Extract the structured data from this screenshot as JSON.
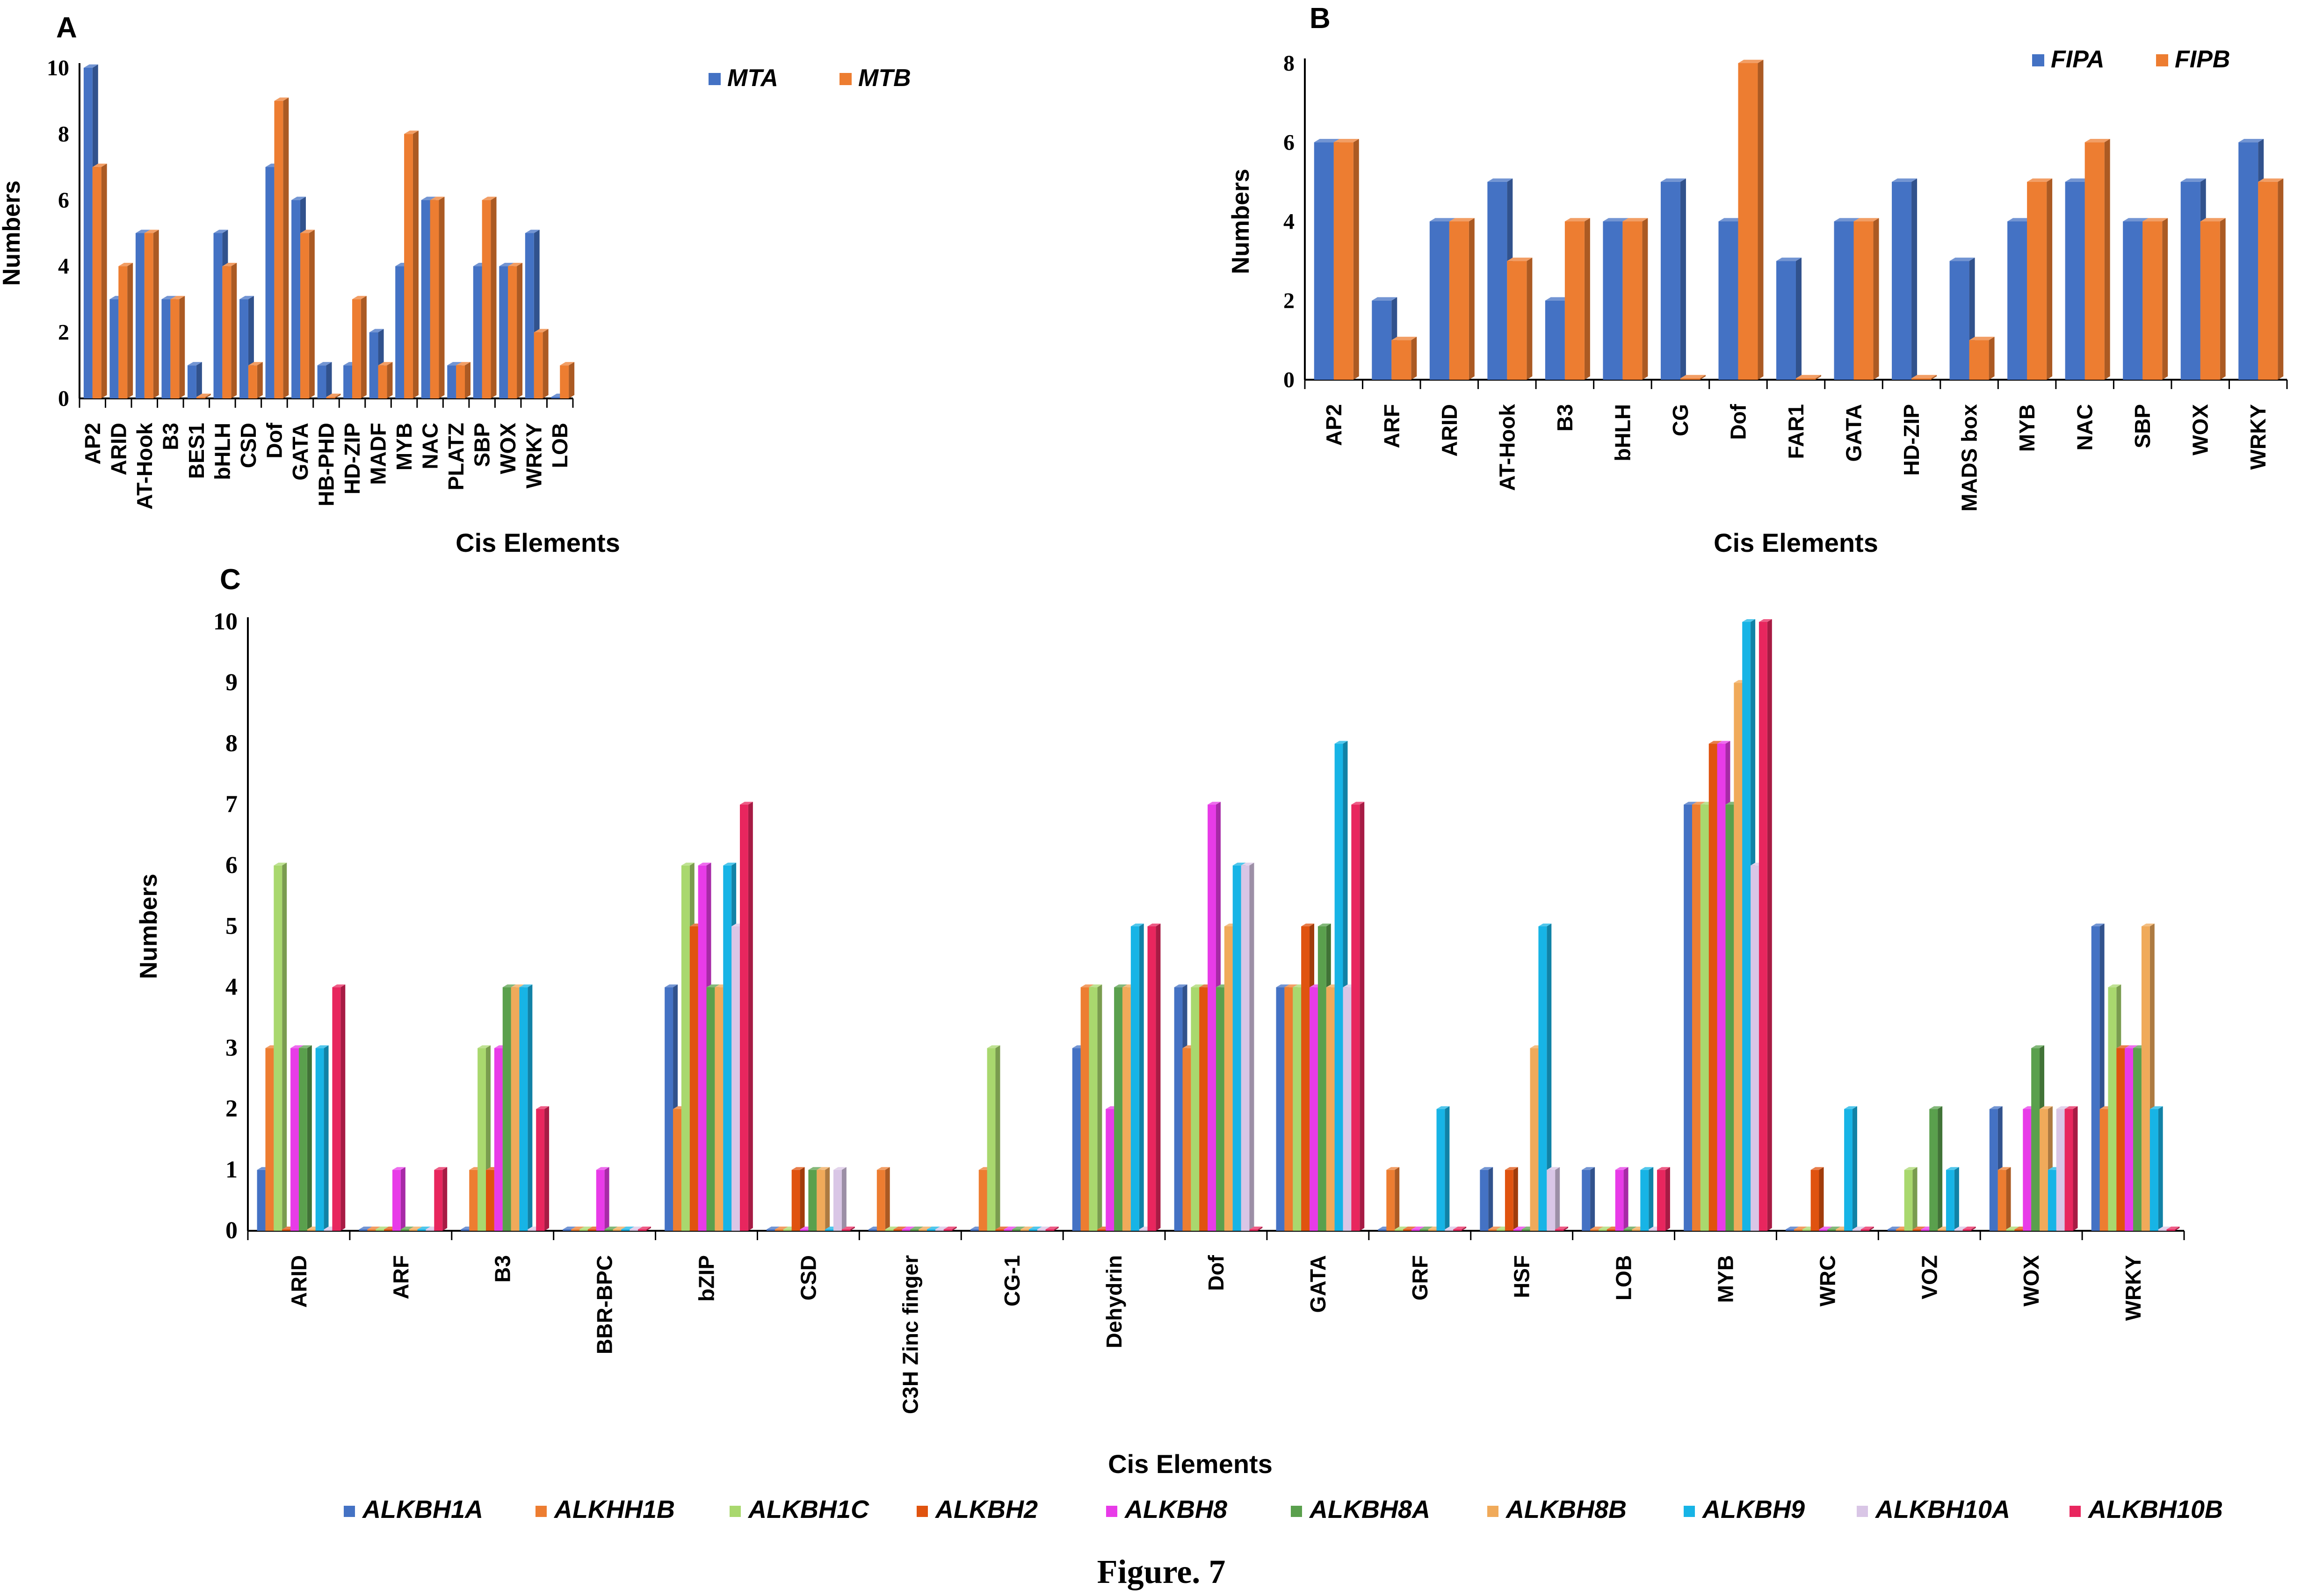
{
  "figure_caption": "Figure. 7",
  "colors": {
    "blue": "#4472C4",
    "orange": "#ED7D31",
    "lime": "#A9D86E",
    "darkorange": "#E0530F",
    "magenta": "#E83BE8",
    "green": "#5AA04D",
    "lightorange": "#F0AA5A",
    "cyan": "#17B4E6",
    "lavender": "#D9C6E6",
    "crimson": "#E8265E"
  },
  "chart_data": [
    {
      "panel": "A",
      "type": "bar",
      "xlabel": "Cis Elements",
      "ylabel": "Numbers",
      "ylim": [
        0,
        10
      ],
      "yticks": [
        "0",
        "2",
        "4",
        "6",
        "8",
        "10"
      ],
      "legend_position": "top-right",
      "categories": [
        "AP2",
        "ARID",
        "AT-Hook",
        "B3",
        "BES1",
        "bHLH",
        "CSD",
        "Dof",
        "GATA",
        "HB-PHD",
        "HD-ZIP",
        "MADF",
        "MYB",
        "NAC",
        "PLATZ",
        "SBP",
        "WOX",
        "WRKY",
        "LOB"
      ],
      "series": [
        {
          "name": "MTA",
          "color": "#4472C4",
          "values": [
            10,
            3,
            5,
            3,
            1,
            5,
            3,
            7,
            6,
            1,
            1,
            2,
            4,
            6,
            1,
            4,
            4,
            5,
            0
          ]
        },
        {
          "name": "MTB",
          "color": "#ED7D31",
          "values": [
            7,
            4,
            5,
            3,
            0,
            4,
            1,
            9,
            5,
            0,
            3,
            1,
            8,
            6,
            1,
            6,
            4,
            2,
            1
          ]
        }
      ]
    },
    {
      "panel": "B",
      "type": "bar",
      "xlabel": "Cis Elements",
      "ylabel": "Numbers",
      "ylim": [
        0,
        8
      ],
      "yticks": [
        "0",
        "2",
        "4",
        "6",
        "8"
      ],
      "legend_position": "top-right",
      "categories": [
        "AP2",
        "ARF",
        "ARID",
        "AT-Hook",
        "B3",
        "bHLH",
        "CG",
        "Dof",
        "FAR1",
        "GATA",
        "HD-ZIP",
        "MADS box",
        "MYB",
        "NAC",
        "SBP",
        "WOX",
        "WRKY"
      ],
      "series": [
        {
          "name": "FIPA",
          "color": "#4472C4",
          "values": [
            6,
            2,
            4,
            5,
            2,
            4,
            5,
            4,
            3,
            4,
            5,
            3,
            4,
            5,
            4,
            5,
            6
          ]
        },
        {
          "name": "FIPB",
          "color": "#ED7D31",
          "values": [
            6,
            1,
            4,
            3,
            4,
            4,
            0,
            8,
            0,
            4,
            0,
            1,
            5,
            6,
            4,
            4,
            5
          ]
        }
      ]
    },
    {
      "panel": "C",
      "type": "bar",
      "xlabel": "Cis Elements",
      "ylabel": "Numbers",
      "ylim": [
        0,
        10
      ],
      "yticks": [
        "0",
        "1",
        "2",
        "3",
        "4",
        "5",
        "6",
        "7",
        "8",
        "9",
        "10"
      ],
      "legend_position": "bottom",
      "categories": [
        "ARID",
        "ARF",
        "B3",
        "BBR-BPC",
        "bZIP",
        "CSD",
        "C3H Zinc finger",
        "CG-1",
        "Dehydrin",
        "Dof",
        "GATA",
        "GRF",
        "HSF",
        "LOB",
        "MYB",
        "WRC",
        "VOZ",
        "WOX",
        "WRKY"
      ],
      "series": [
        {
          "name": "ALKBH1A",
          "color": "#4472C4",
          "values": [
            1,
            0,
            0,
            0,
            4,
            0,
            0,
            0,
            3,
            4,
            4,
            0,
            1,
            1,
            7,
            0,
            0,
            2,
            5
          ]
        },
        {
          "name": "ALKHH1B",
          "color": "#ED7D31",
          "values": [
            3,
            0,
            1,
            0,
            2,
            0,
            1,
            1,
            4,
            3,
            4,
            1,
            0,
            0,
            7,
            0,
            0,
            1,
            2
          ]
        },
        {
          "name": "ALKBH1C",
          "color": "#A9D86E",
          "values": [
            6,
            0,
            3,
            0,
            6,
            0,
            0,
            3,
            4,
            4,
            4,
            0,
            0,
            0,
            7,
            0,
            1,
            0,
            4
          ]
        },
        {
          "name": "ALKBH2",
          "color": "#E0530F",
          "values": [
            0,
            0,
            1,
            0,
            5,
            1,
            0,
            0,
            0,
            4,
            5,
            0,
            1,
            0,
            8,
            1,
            0,
            0,
            3
          ]
        },
        {
          "name": "ALKBH8",
          "color": "#E83BE8",
          "values": [
            3,
            1,
            3,
            1,
            6,
            0,
            0,
            0,
            2,
            7,
            4,
            0,
            0,
            1,
            8,
            0,
            0,
            2,
            3
          ]
        },
        {
          "name": "ALKBH8A",
          "color": "#5AA04D",
          "values": [
            3,
            0,
            4,
            0,
            4,
            1,
            0,
            0,
            4,
            4,
            5,
            0,
            0,
            0,
            7,
            0,
            2,
            3,
            3
          ]
        },
        {
          "name": "ALKBH8B",
          "color": "#F0AA5A",
          "values": [
            0,
            0,
            4,
            0,
            4,
            1,
            0,
            0,
            4,
            5,
            4,
            0,
            3,
            0,
            9,
            0,
            0,
            2,
            5
          ]
        },
        {
          "name": "ALKBH9",
          "color": "#17B4E6",
          "values": [
            3,
            0,
            4,
            0,
            6,
            0,
            0,
            0,
            5,
            6,
            8,
            2,
            5,
            1,
            10,
            2,
            1,
            1,
            2
          ]
        },
        {
          "name": "ALKBH10A",
          "color": "#D9C6E6",
          "values": [
            0,
            0,
            0,
            0,
            5,
            1,
            0,
            0,
            0,
            6,
            4,
            0,
            1,
            0,
            6,
            0,
            0,
            2,
            0
          ]
        },
        {
          "name": "ALKBH10B",
          "color": "#E8265E",
          "values": [
            4,
            1,
            2,
            0,
            7,
            0,
            0,
            0,
            5,
            0,
            7,
            0,
            0,
            1,
            10,
            0,
            0,
            2,
            0
          ]
        }
      ]
    }
  ]
}
